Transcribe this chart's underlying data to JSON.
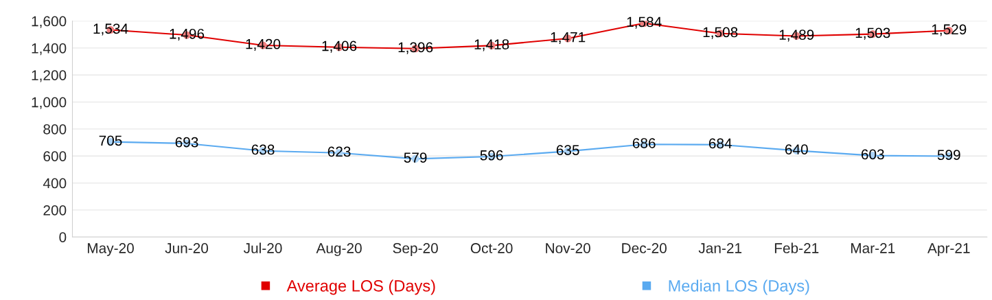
{
  "chart_data": {
    "type": "line",
    "categories": [
      "May-20",
      "Jun-20",
      "Jul-20",
      "Aug-20",
      "Sep-20",
      "Oct-20",
      "Nov-20",
      "Dec-20",
      "Jan-21",
      "Feb-21",
      "Mar-21",
      "Apr-21"
    ],
    "series": [
      {
        "name": "Average LOS (Days)",
        "color": "#e00000",
        "values": [
          1534,
          1496,
          1420,
          1406,
          1396,
          1418,
          1471,
          1584,
          1508,
          1489,
          1503,
          1529
        ],
        "value_labels": [
          "1,534",
          "1,496",
          "1,420",
          "1,406",
          "1,396",
          "1,418",
          "1,471",
          "1,584",
          "1,508",
          "1,489",
          "1,503",
          "1,529"
        ]
      },
      {
        "name": "Median LOS (Days)",
        "color": "#5aaaf0",
        "values": [
          705,
          693,
          638,
          623,
          579,
          596,
          635,
          686,
          684,
          640,
          603,
          599
        ],
        "value_labels": [
          "705",
          "693",
          "638",
          "623",
          "579",
          "596",
          "635",
          "686",
          "684",
          "640",
          "603",
          "599"
        ]
      }
    ],
    "ylim": [
      0,
      1600
    ],
    "yticks": [
      0,
      200,
      400,
      600,
      800,
      {
        "value": 1000,
        "label": "1,000"
      },
      {
        "value": 1200,
        "label": "1,200"
      },
      {
        "value": 1400,
        "label": "1,400"
      },
      {
        "value": 1600,
        "label": "1,600"
      }
    ],
    "grid": "y",
    "legend": "bottom",
    "marker": "circle",
    "line_style": "solid"
  }
}
